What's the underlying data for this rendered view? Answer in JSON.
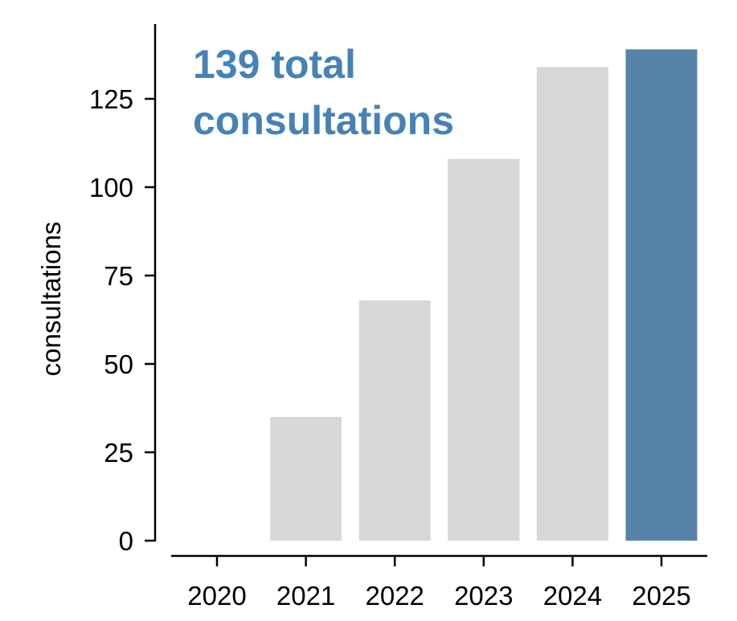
{
  "chart_data": {
    "type": "bar",
    "categories": [
      "2020",
      "2021",
      "2022",
      "2023",
      "2024",
      "2025"
    ],
    "values": [
      0,
      35,
      68,
      108,
      134,
      139
    ],
    "title": "",
    "xlabel": "",
    "ylabel": "consultations",
    "ylim": [
      0,
      145
    ],
    "yticks": [
      0,
      25,
      50,
      75,
      100,
      125
    ],
    "grid": false,
    "annotation": [
      "139 total",
      "consultations"
    ],
    "colors": {
      "default": "#d6d7d9",
      "highlight": "#5883a8",
      "annotation": "#4682b4"
    },
    "highlight_category": "2025"
  }
}
